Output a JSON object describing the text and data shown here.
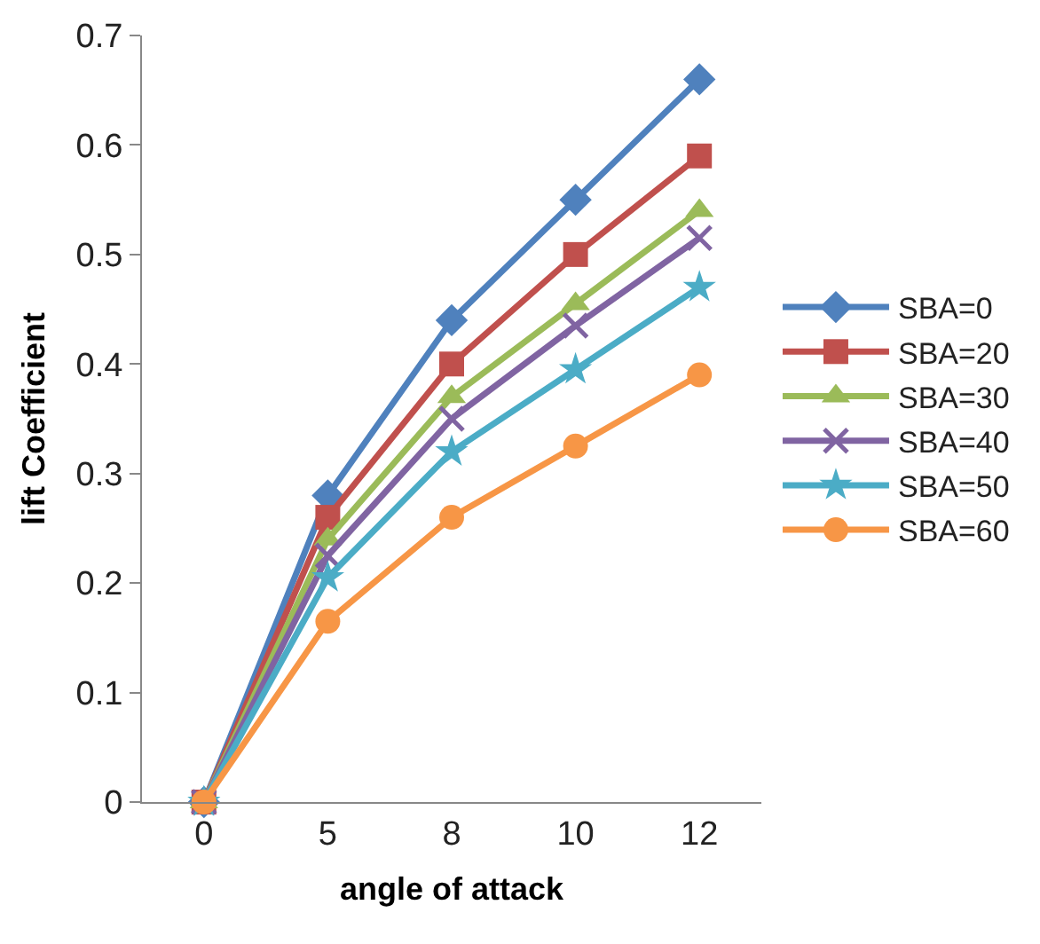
{
  "chart_data": {
    "type": "line",
    "xlabel": "angle of attack",
    "ylabel": "lift Coefficient",
    "categories": [
      "0",
      "5",
      "8",
      "10",
      "12"
    ],
    "ylim": [
      0,
      0.7
    ],
    "yticks": [
      0,
      0.1,
      0.2,
      0.3,
      0.4,
      0.5,
      0.6,
      0.7
    ],
    "grid": false,
    "legend": "right",
    "line_style": "solid",
    "series": [
      {
        "name": "SBA=0",
        "color": "#4f81bd",
        "marker": "diamond",
        "values": [
          0,
          0.28,
          0.44,
          0.55,
          0.66
        ]
      },
      {
        "name": "SBA=20",
        "color": "#c0504d",
        "marker": "square",
        "values": [
          0,
          0.26,
          0.4,
          0.5,
          0.59
        ]
      },
      {
        "name": "SBA=30",
        "color": "#9bbb59",
        "marker": "triangle",
        "values": [
          0,
          0.24,
          0.37,
          0.455,
          0.54
        ]
      },
      {
        "name": "SBA=40",
        "color": "#8064a2",
        "marker": "cross",
        "values": [
          0,
          0.225,
          0.35,
          0.435,
          0.515
        ]
      },
      {
        "name": "SBA=50",
        "color": "#4bacc6",
        "marker": "star",
        "values": [
          0,
          0.205,
          0.32,
          0.395,
          0.47
        ]
      },
      {
        "name": "SBA=60",
        "color": "#f79646",
        "marker": "circle",
        "values": [
          0,
          0.165,
          0.26,
          0.325,
          0.39
        ]
      }
    ]
  }
}
